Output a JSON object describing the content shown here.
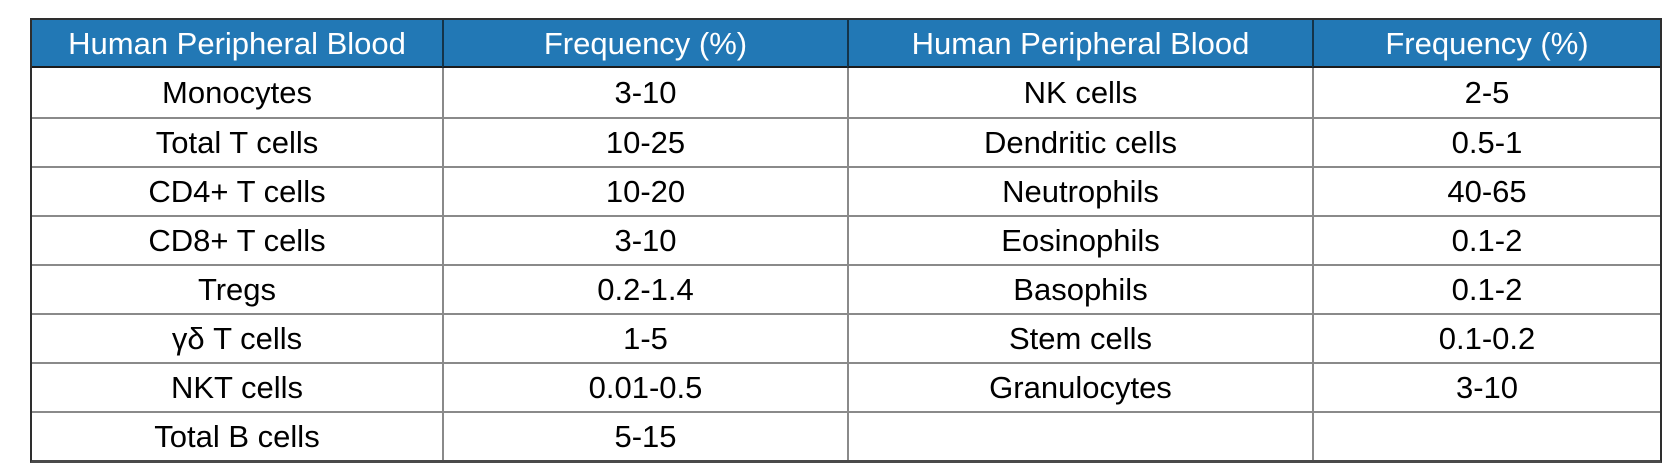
{
  "page": {
    "background": "#ffffff"
  },
  "colors": {
    "header_bg": "#2278b5",
    "header_text": "#ffffff",
    "body_text": "#000000",
    "inner_grid_line": "#8a8a8a",
    "outer_border": "#2e2e2e"
  },
  "chart_data": {
    "type": "table",
    "columns": [
      "Human Peripheral Blood",
      "Frequency (%)",
      "Human Peripheral Blood",
      "Frequency (%)"
    ],
    "rows": [
      [
        "Monocytes",
        "3-10",
        "NK cells",
        "2-5"
      ],
      [
        "Total T cells",
        "10-25",
        "Dendritic cells",
        "0.5-1"
      ],
      [
        "CD4+ T cells",
        "10-20",
        "Neutrophils",
        "40-65"
      ],
      [
        "CD8+ T cells",
        "3-10",
        "Eosinophils",
        "0.1-2"
      ],
      [
        "Tregs",
        "0.2-1.4",
        "Basophils",
        "0.1-2"
      ],
      [
        "γδ T cells",
        "1-5",
        "Stem cells",
        "0.1-0.2"
      ],
      [
        "NKT cells",
        "0.01-0.5",
        "Granulocytes",
        "3-10"
      ],
      [
        "Total B cells",
        "5-15",
        "",
        ""
      ]
    ]
  }
}
